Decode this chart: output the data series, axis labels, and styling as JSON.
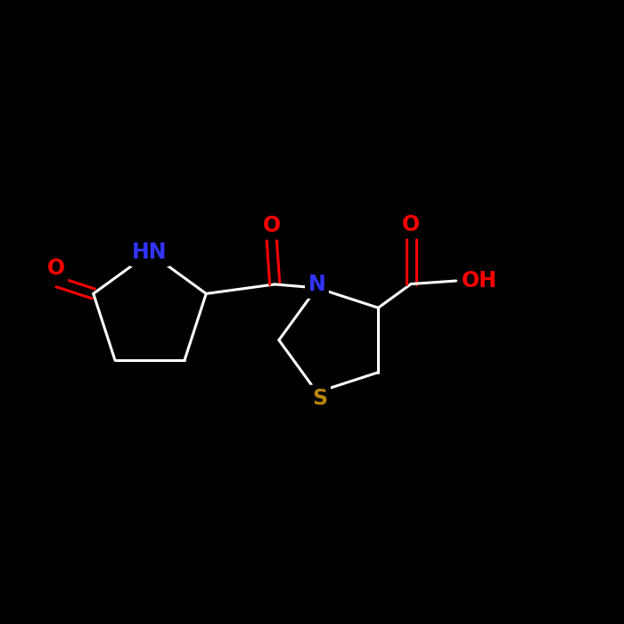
{
  "background_color": "#000000",
  "bond_color": "#ffffff",
  "atom_colors": {
    "O": "#ff0000",
    "N": "#3333ff",
    "S": "#b8860b",
    "H": "#ffffff",
    "C": "#ffffff"
  },
  "figsize": [
    7.0,
    7.0
  ],
  "dpi": 100,
  "lw": 2.2,
  "fs": 17
}
